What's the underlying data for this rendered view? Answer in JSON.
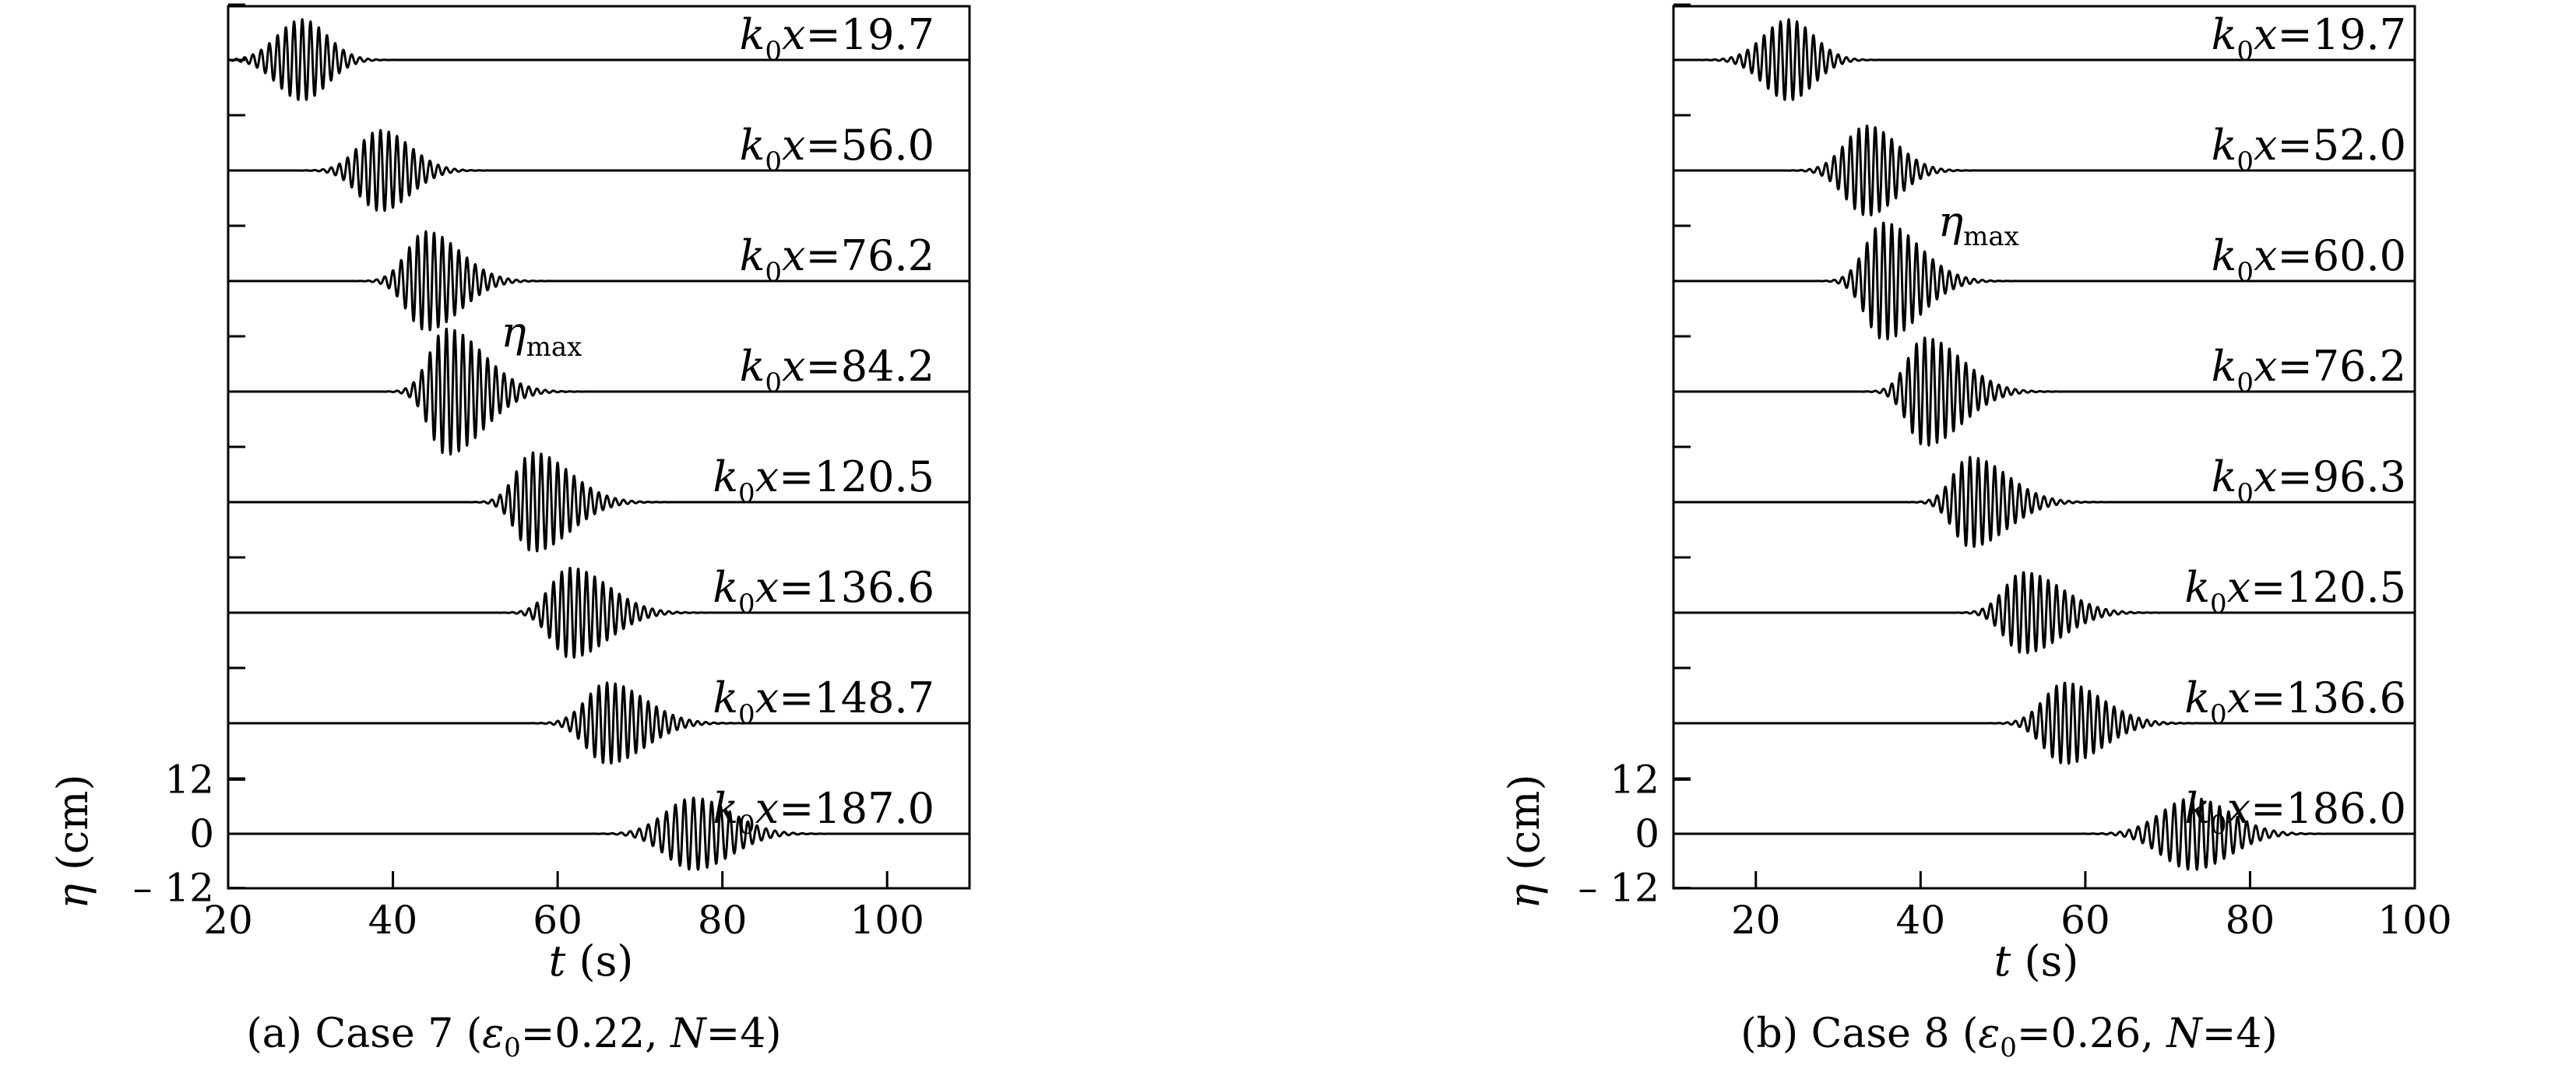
{
  "chart_data": [
    {
      "type": "line",
      "caption": "(a) Case 7 (ε0=0.22, N=4)",
      "caption_parts": [
        "(a) Case 7 (",
        "ε",
        "0",
        "=0.22, ",
        "N",
        "=4)"
      ],
      "xlabel_var": "t",
      "xlabel_unit": " (s)",
      "ylabel_var": "η",
      "ylabel_unit": " (cm)",
      "xlim": [
        20,
        110
      ],
      "x_ticks": [
        20,
        40,
        60,
        80,
        100
      ],
      "y_tick_labels": [
        "12",
        "0",
        "– 12"
      ],
      "y_ticks": [
        12,
        0,
        -12
      ],
      "annotation": {
        "var": "η",
        "sub": "max",
        "station_index": 3
      },
      "stations": [
        {
          "label": "19.7",
          "center_t": 29,
          "sigma": 3.0,
          "amp": 9,
          "period": 1.0,
          "skew": 0.0
        },
        {
          "label": "56.0",
          "center_t": 38.5,
          "sigma": 3.0,
          "amp": 9,
          "period": 1.0,
          "skew": 0.3
        },
        {
          "label": "76.2",
          "center_t": 44,
          "sigma": 3.0,
          "amp": 11,
          "period": 1.0,
          "skew": 0.6
        },
        {
          "label": "84.2",
          "center_t": 46.5,
          "sigma": 3.0,
          "amp": 14,
          "period": 1.0,
          "skew": 0.8
        },
        {
          "label": "120.5",
          "center_t": 57,
          "sigma": 3.0,
          "amp": 11,
          "period": 1.0,
          "skew": 0.8
        },
        {
          "label": "136.6",
          "center_t": 61.5,
          "sigma": 3.2,
          "amp": 10,
          "period": 1.0,
          "skew": 0.7
        },
        {
          "label": "148.7",
          "center_t": 66,
          "sigma": 3.3,
          "amp": 9,
          "period": 1.0,
          "skew": 0.6
        },
        {
          "label": "187.0",
          "center_t": 76.5,
          "sigma": 3.8,
          "amp": 8,
          "period": 1.1,
          "skew": 0.3
        }
      ]
    },
    {
      "type": "line",
      "caption": "(b) Case 8 (ε0=0.26, N=4)",
      "caption_parts": [
        "(b) Case 8 (",
        "ε",
        "0",
        "=0.26, ",
        "N",
        "=4)"
      ],
      "xlabel_var": "t",
      "xlabel_unit": " (s)",
      "ylabel_var": "η",
      "ylabel_unit": " (cm)",
      "xlim": [
        10,
        100
      ],
      "x_ticks": [
        20,
        40,
        60,
        80,
        100
      ],
      "y_tick_labels": [
        "12",
        "0",
        "– 12"
      ],
      "y_ticks": [
        12,
        0,
        -12
      ],
      "annotation": {
        "var": "η",
        "sub": "max",
        "station_index": 2
      },
      "stations": [
        {
          "label": "19.7",
          "center_t": 24,
          "sigma": 3.0,
          "amp": 9,
          "period": 1.0,
          "skew": 0.0
        },
        {
          "label": "52.0",
          "center_t": 33.5,
          "sigma": 3.0,
          "amp": 10,
          "period": 1.0,
          "skew": 0.3
        },
        {
          "label": "60.0",
          "center_t": 35.5,
          "sigma": 3.0,
          "amp": 13,
          "period": 1.0,
          "skew": 0.7
        },
        {
          "label": "76.2",
          "center_t": 40.5,
          "sigma": 3.0,
          "amp": 12,
          "period": 1.0,
          "skew": 0.8
        },
        {
          "label": "96.3",
          "center_t": 46,
          "sigma": 3.0,
          "amp": 10,
          "period": 1.0,
          "skew": 0.8
        },
        {
          "label": "120.5",
          "center_t": 52.5,
          "sigma": 3.2,
          "amp": 9,
          "period": 1.0,
          "skew": 0.7
        },
        {
          "label": "136.6",
          "center_t": 57.5,
          "sigma": 3.3,
          "amp": 9,
          "period": 1.0,
          "skew": 0.6
        },
        {
          "label": "186.0",
          "center_t": 73,
          "sigma": 4.0,
          "amp": 8,
          "period": 1.1,
          "skew": 0.2
        }
      ]
    }
  ]
}
